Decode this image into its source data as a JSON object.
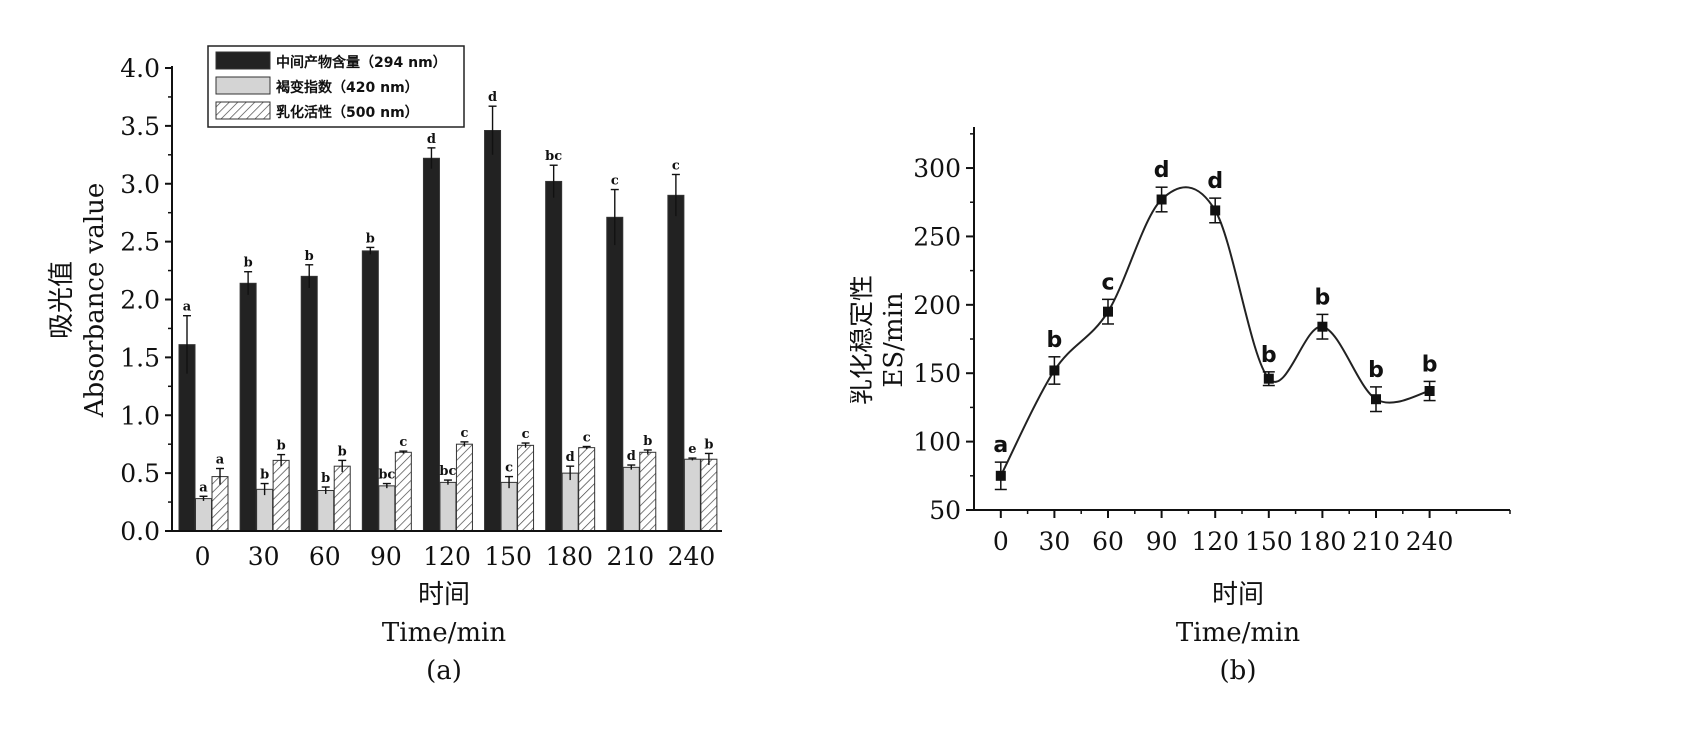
{
  "chart_data": [
    {
      "type": "bar",
      "panel_label": "(a)",
      "xlabel_cn": "时间",
      "xlabel_en": "Time/min",
      "ylabel_cn": "吸光值",
      "ylabel_en": "Absorbance  value",
      "ylim": [
        0,
        4.0
      ],
      "yticks": [
        "0.0",
        "0.5",
        "1.0",
        "1.5",
        "2.0",
        "2.5",
        "3.0",
        "3.5",
        "4.0"
      ],
      "categories": [
        "0",
        "30",
        "60",
        "90",
        "120",
        "150",
        "180",
        "210",
        "240"
      ],
      "legend_position": "top-left",
      "series": [
        {
          "name": "中间产物含量（294 nm）",
          "color": "#222222",
          "pattern": "solid",
          "values": [
            1.61,
            2.14,
            2.2,
            2.42,
            3.22,
            3.46,
            3.02,
            2.71,
            2.9
          ],
          "errors": [
            0.25,
            0.1,
            0.1,
            0.03,
            0.09,
            0.21,
            0.14,
            0.24,
            0.18
          ],
          "letters": [
            "a",
            "b",
            "b",
            "b",
            "d",
            "d",
            "bc",
            "c",
            "c"
          ]
        },
        {
          "name": "褐变指数（420 nm）",
          "color": "#d4d4d4",
          "pattern": "light",
          "values": [
            0.28,
            0.36,
            0.35,
            0.39,
            0.42,
            0.42,
            0.5,
            0.55,
            0.62
          ],
          "errors": [
            0.02,
            0.05,
            0.03,
            0.02,
            0.02,
            0.05,
            0.06,
            0.02,
            0.01
          ],
          "letters": [
            "a",
            "b",
            "b",
            "bc",
            "bc",
            "c",
            "d",
            "d",
            "e"
          ]
        },
        {
          "name": "乳化活性（500 nm）",
          "color": "#ffffff",
          "pattern": "hatch",
          "values": [
            0.47,
            0.61,
            0.56,
            0.68,
            0.75,
            0.74,
            0.72,
            0.68,
            0.62
          ],
          "errors": [
            0.07,
            0.05,
            0.05,
            0.01,
            0.02,
            0.02,
            0.01,
            0.02,
            0.05
          ],
          "letters": [
            "a",
            "b",
            "b",
            "c",
            "c",
            "c",
            "c",
            "b",
            "b"
          ]
        }
      ]
    },
    {
      "type": "line",
      "panel_label": "(b)",
      "xlabel_cn": "时间",
      "xlabel_en": "Time/min",
      "ylabel_cn": "乳化稳定性",
      "ylabel_en": "ES/min",
      "ylim": [
        50,
        330
      ],
      "xlim": [
        -15,
        285
      ],
      "yticks": [
        "50",
        "100",
        "150",
        "200",
        "250",
        "300"
      ],
      "xticks": [
        "0",
        "30",
        "60",
        "90",
        "120",
        "150",
        "180",
        "210",
        "240"
      ],
      "x": [
        0,
        30,
        60,
        90,
        120,
        150,
        180,
        210,
        240
      ],
      "y": [
        75,
        152,
        195,
        277,
        269,
        146,
        184,
        131,
        137
      ],
      "errors": [
        10,
        10,
        9,
        9,
        9,
        5,
        9,
        9,
        7
      ],
      "letters": [
        "a",
        "b",
        "c",
        "d",
        "d",
        "b",
        "b",
        "b",
        "b"
      ],
      "smooth": true
    }
  ]
}
